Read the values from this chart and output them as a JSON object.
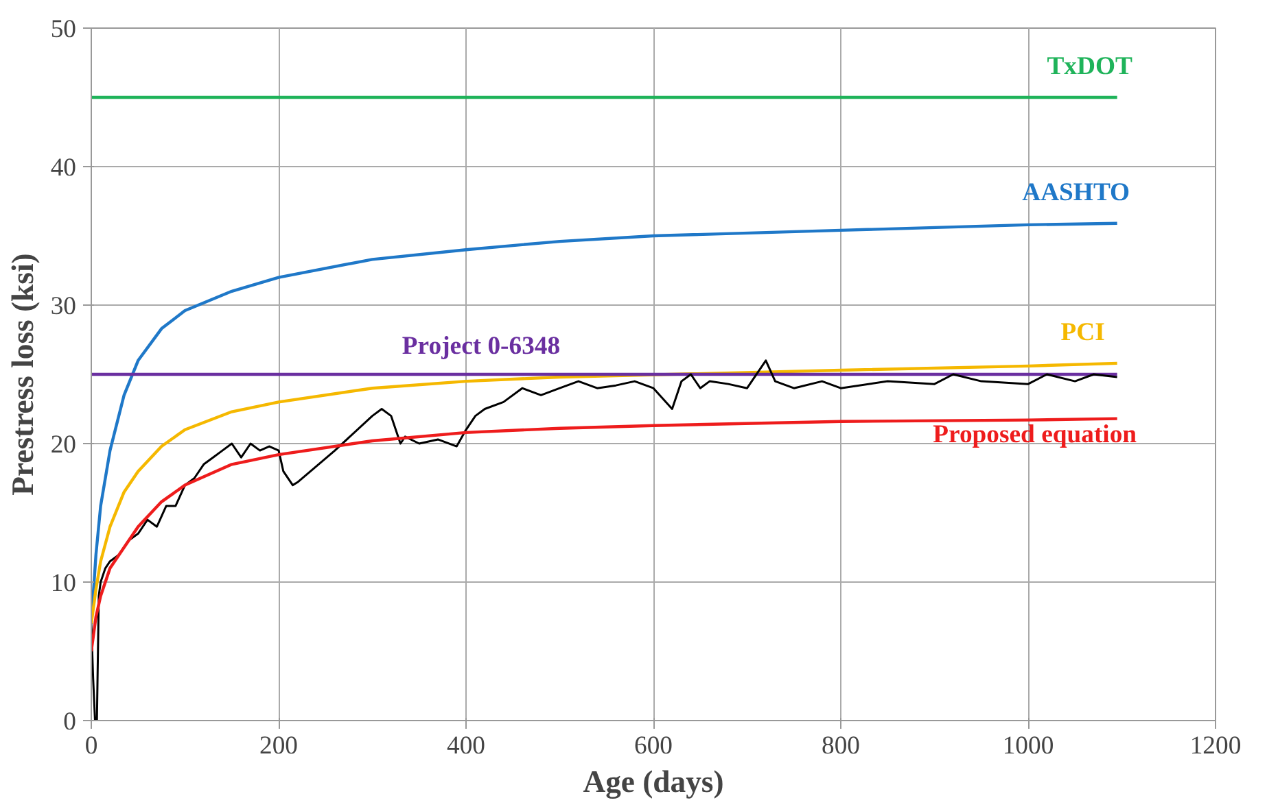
{
  "chart_data": {
    "type": "line",
    "xlabel": "Age (days)",
    "ylabel": "Prestress loss (ksi)",
    "xlim": [
      0,
      1200
    ],
    "ylim": [
      0,
      50
    ],
    "xticks": [
      0,
      200,
      400,
      600,
      800,
      1000,
      1200
    ],
    "yticks": [
      0,
      10,
      20,
      30,
      40,
      50
    ],
    "grid": true,
    "marker": "none",
    "line_style": "solid",
    "series": [
      {
        "name": "TxDOT",
        "color": "#1fb35a",
        "x": [
          0,
          1095
        ],
        "values": [
          45,
          45
        ]
      },
      {
        "name": "AASHTO",
        "color": "#1f78c8",
        "x": [
          0,
          5,
          10,
          20,
          35,
          50,
          75,
          100,
          150,
          200,
          300,
          400,
          500,
          600,
          800,
          1000,
          1095
        ],
        "values": [
          7,
          12,
          15.5,
          19.5,
          23.5,
          26,
          28.3,
          29.6,
          31,
          32,
          33.3,
          34,
          34.6,
          35,
          35.4,
          35.8,
          35.9
        ]
      },
      {
        "name": "PCI",
        "color": "#f5b800",
        "x": [
          0,
          5,
          10,
          20,
          35,
          50,
          75,
          100,
          150,
          200,
          300,
          400,
          500,
          800,
          1000,
          1095
        ],
        "values": [
          7,
          9.5,
          11.5,
          14,
          16.5,
          18,
          19.8,
          21,
          22.3,
          23,
          24,
          24.5,
          24.8,
          25.3,
          25.6,
          25.8
        ]
      },
      {
        "name": "Project 0-6348",
        "color": "#6a2fa0",
        "x": [
          0,
          1095
        ],
        "values": [
          25,
          25
        ]
      },
      {
        "name": null,
        "color": "#000000",
        "x": [
          0,
          2,
          4,
          6,
          8,
          10,
          15,
          20,
          30,
          40,
          50,
          60,
          70,
          80,
          90,
          100,
          110,
          120,
          130,
          140,
          150,
          160,
          170,
          180,
          190,
          200,
          205,
          215,
          220,
          260,
          300,
          310,
          320,
          330,
          335,
          350,
          370,
          390,
          400,
          410,
          420,
          440,
          460,
          480,
          500,
          520,
          540,
          560,
          580,
          600,
          620,
          630,
          640,
          650,
          660,
          680,
          700,
          720,
          730,
          750,
          780,
          800,
          850,
          900,
          920,
          950,
          1000,
          1020,
          1050,
          1070,
          1095
        ],
        "values": [
          7,
          3,
          0,
          0,
          9,
          10,
          11,
          11.5,
          12,
          13,
          13.5,
          14.5,
          14,
          15.5,
          15.5,
          17,
          17.5,
          18.5,
          19,
          19.5,
          20,
          19,
          20,
          19.5,
          19.8,
          19.5,
          18,
          17,
          17.2,
          19.5,
          22,
          22.5,
          22,
          20,
          20.5,
          20,
          20.3,
          19.8,
          21,
          22,
          22.5,
          23,
          24,
          23.5,
          24,
          24.5,
          24,
          24.2,
          24.5,
          24,
          22.5,
          24.5,
          25,
          24,
          24.5,
          24.3,
          24,
          26,
          24.5,
          24,
          24.5,
          24,
          24.5,
          24.3,
          25,
          24.5,
          24.3,
          25,
          24.5,
          25,
          24.8
        ]
      },
      {
        "name": "Proposed equation",
        "color": "#ee1c1c",
        "x": [
          0,
          5,
          10,
          20,
          30,
          50,
          75,
          100,
          150,
          200,
          300,
          400,
          500,
          600,
          800,
          1000,
          1095
        ],
        "values": [
          5,
          7.5,
          9,
          11,
          12,
          14,
          15.8,
          17,
          18.5,
          19.2,
          20.2,
          20.8,
          21.1,
          21.3,
          21.6,
          21.7,
          21.8
        ]
      }
    ]
  }
}
